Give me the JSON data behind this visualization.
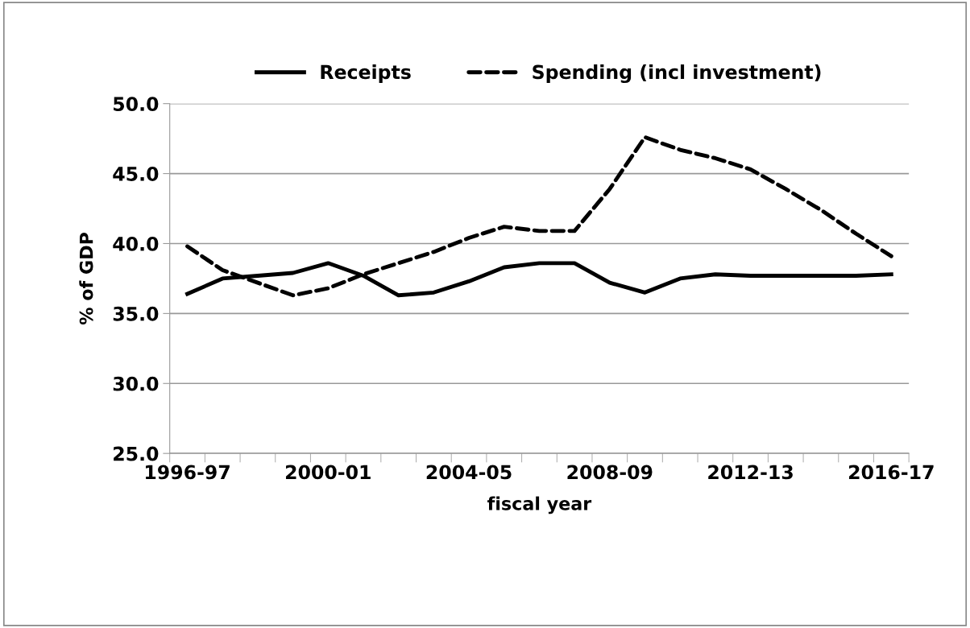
{
  "chart_data": {
    "type": "line",
    "xlabel": "fiscal year",
    "ylabel": "% of GDP",
    "categories": [
      "1996-97",
      null,
      null,
      null,
      "2000-01",
      null,
      null,
      null,
      "2004-05",
      null,
      null,
      null,
      "2008-09",
      null,
      null,
      null,
      "2012-13",
      null,
      null,
      null,
      "2016-17"
    ],
    "series": [
      {
        "name": "Receipts",
        "color": "#000000",
        "line_style": "solid",
        "values": [
          36.4,
          37.5,
          37.7,
          37.9,
          38.6,
          37.7,
          36.3,
          36.5,
          37.3,
          38.3,
          38.6,
          38.6,
          37.2,
          36.5,
          37.5,
          37.8,
          37.7,
          37.7,
          37.7,
          37.7,
          37.8
        ]
      },
      {
        "name": "Spending (incl investment)",
        "color": "#000000",
        "line_style": "dashed",
        "values": [
          39.8,
          38.1,
          37.2,
          36.3,
          36.8,
          37.8,
          38.6,
          39.4,
          40.4,
          41.2,
          40.9,
          40.9,
          43.9,
          47.6,
          46.7,
          46.1,
          45.3,
          43.9,
          42.4,
          40.7,
          39.1
        ]
      }
    ],
    "ylim": [
      25,
      50
    ],
    "yticks": [
      {
        "value": 25,
        "label": "25.0"
      },
      {
        "value": 30,
        "label": "30.0"
      },
      {
        "value": 35,
        "label": "35.0"
      },
      {
        "value": 40,
        "label": "40.0"
      },
      {
        "value": 45,
        "label": "45.0"
      },
      {
        "value": 50,
        "label": "50.0"
      }
    ],
    "grid": "y",
    "legend": "top",
    "marker": "none"
  }
}
